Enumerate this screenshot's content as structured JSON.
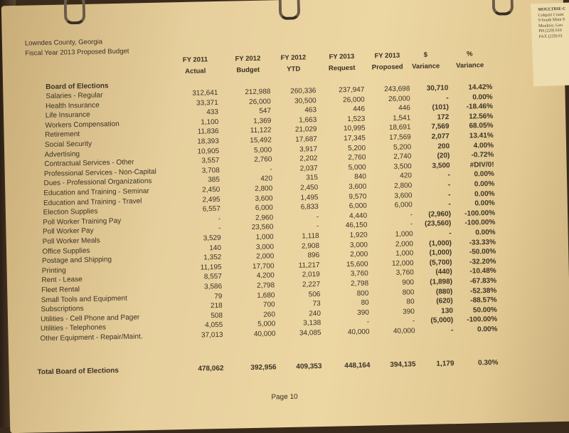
{
  "header": {
    "county": "Lowndes County, Georgia",
    "title": "Fiscal Year 2013 Proposed Budget"
  },
  "columns": [
    {
      "line1": "FY 2011",
      "line2": "Actual"
    },
    {
      "line1": "FY 2012",
      "line2": "Budget"
    },
    {
      "line1": "FY 2012",
      "line2": "YTD"
    },
    {
      "line1": "FY 2013",
      "line2": "Request"
    },
    {
      "line1": "FY 2013",
      "line2": "Proposed"
    },
    {
      "line1": "$",
      "line2": "Variance"
    },
    {
      "line1": "%",
      "line2": "Variance"
    }
  ],
  "section_title": "Board of Elections",
  "rows": [
    {
      "label": "Salaries - Regular",
      "v": [
        "312,641",
        "212,988",
        "260,336",
        "237,947",
        "243,698",
        "30,710",
        "14.42%"
      ]
    },
    {
      "label": "Health Insurance",
      "v": [
        "33,371",
        "26,000",
        "30,500",
        "26,000",
        "26,000",
        "-",
        "0.00%"
      ]
    },
    {
      "label": "Life Insurance",
      "v": [
        "433",
        "547",
        "463",
        "446",
        "446",
        "(101)",
        "-18.46%"
      ]
    },
    {
      "label": "Workers Compensation",
      "v": [
        "1,100",
        "1,369",
        "1,663",
        "1,523",
        "1,541",
        "172",
        "12.56%"
      ]
    },
    {
      "label": "Retirement",
      "v": [
        "11,836",
        "11,122",
        "21,029",
        "10,995",
        "18,691",
        "7,569",
        "68.05%"
      ]
    },
    {
      "label": "Social Security",
      "v": [
        "18,393",
        "15,492",
        "17,687",
        "17,345",
        "17,569",
        "2,077",
        "13.41%"
      ]
    },
    {
      "label": "Advertising",
      "v": [
        "10,905",
        "5,000",
        "3,917",
        "5,200",
        "5,200",
        "200",
        "4.00%"
      ]
    },
    {
      "label": "Contractual Services - Other",
      "v": [
        "3,557",
        "2,760",
        "2,202",
        "2,760",
        "2,740",
        "(20)",
        "-0.72%"
      ]
    },
    {
      "label": "Professional Services - Non-Capital",
      "v": [
        "3,708",
        "-",
        "2,037",
        "5,000",
        "3,500",
        "3,500",
        "#DIV/0!"
      ]
    },
    {
      "label": "Dues - Professional Organizations",
      "v": [
        "385",
        "420",
        "315",
        "840",
        "420",
        "-",
        "0.00%"
      ]
    },
    {
      "label": "Education and Training - Seminar",
      "v": [
        "2,450",
        "2,800",
        "2,450",
        "3,600",
        "2,800",
        "-",
        "0.00%"
      ]
    },
    {
      "label": "Education and Training - Travel",
      "v": [
        "2,495",
        "3,600",
        "1,495",
        "9,570",
        "3,600",
        "-",
        "0.00%"
      ]
    },
    {
      "label": "Election Supplies",
      "v": [
        "6,557",
        "6,000",
        "6,833",
        "6,000",
        "6,000",
        "-",
        "0.00%"
      ]
    },
    {
      "label": "Poll Worker Training Pay",
      "v": [
        "-",
        "2,960",
        "-",
        "4,440",
        "-",
        "(2,960)",
        "-100.00%"
      ]
    },
    {
      "label": "Poll Worker Pay",
      "v": [
        "-",
        "23,560",
        "-",
        "46,150",
        "-",
        "(23,560)",
        "-100.00%"
      ]
    },
    {
      "label": "Poll Worker Meals",
      "v": [
        "3,529",
        "1,000",
        "1,118",
        "1,920",
        "1,000",
        "-",
        "0.00%"
      ]
    },
    {
      "label": "Office Supplies",
      "v": [
        "140",
        "3,000",
        "2,908",
        "3,000",
        "2,000",
        "(1,000)",
        "-33.33%"
      ]
    },
    {
      "label": "Postage and Shipping",
      "v": [
        "1,352",
        "2,000",
        "896",
        "2,000",
        "1,000",
        "(1,000)",
        "-50.00%"
      ]
    },
    {
      "label": "Printing",
      "v": [
        "11,195",
        "17,700",
        "11,217",
        "15,600",
        "12,000",
        "(5,700)",
        "-32.20%"
      ]
    },
    {
      "label": "Rent - Lease",
      "v": [
        "8,557",
        "4,200",
        "2,019",
        "3,760",
        "3,760",
        "(440)",
        "-10.48%"
      ]
    },
    {
      "label": "Fleet Rental",
      "v": [
        "3,586",
        "2,798",
        "2,227",
        "2,798",
        "900",
        "(1,898)",
        "-67.83%"
      ]
    },
    {
      "label": "Small Tools and Equipment",
      "v": [
        "79",
        "1,680",
        "506",
        "800",
        "800",
        "(880)",
        "-52.38%"
      ]
    },
    {
      "label": "Subscriptions",
      "v": [
        "218",
        "700",
        "73",
        "80",
        "80",
        "(620)",
        "-88.57%"
      ]
    },
    {
      "label": "Utilities - Cell Phone and Pager",
      "v": [
        "508",
        "260",
        "240",
        "390",
        "390",
        "130",
        "50.00%"
      ]
    },
    {
      "label": "Utilities - Telephones",
      "v": [
        "4,055",
        "5,000",
        "3,138",
        "-",
        "-",
        "(5,000)",
        "-100.00%"
      ]
    },
    {
      "label": "Other Equipment - Repair/Maint.",
      "v": [
        "37,013",
        "40,000",
        "34,085",
        "40,000",
        "40,000",
        "-",
        "0.00%"
      ]
    }
  ],
  "total": {
    "label": "Total Board of Elections",
    "v": [
      "478,062",
      "392,956",
      "409,353",
      "448,164",
      "394,135",
      "1,179",
      "0.30%"
    ]
  },
  "footer": {
    "page": "Page 10"
  },
  "side_card": {
    "line1": "MOULTRIE-C",
    "line2": "Colquitt Count",
    "line3": "9 South Main S",
    "line4": "Moultrie, Geo",
    "line5": "PH (229) 616",
    "line6": "FAX (229) 61"
  }
}
